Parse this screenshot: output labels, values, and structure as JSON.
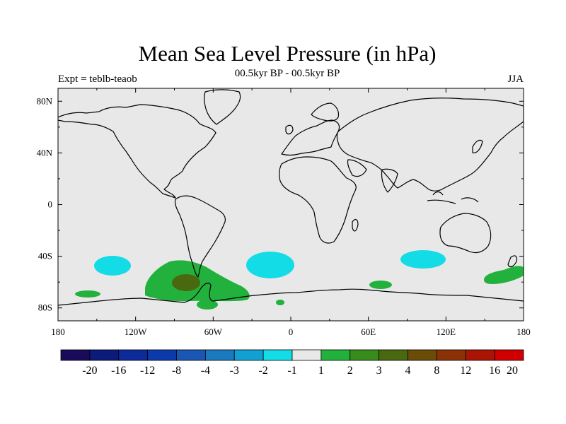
{
  "title": "Mean Sea Level Pressure (in hPa)",
  "subtitle_left": "Expt = teblb-teaob",
  "subtitle_center": "00.5kyr BP - 00.5kyr BP",
  "subtitle_right": "JJA",
  "chart_data": {
    "type": "map",
    "projection": "equirectangular",
    "lon_range": [
      -180,
      180
    ],
    "lat_range": [
      -90,
      90
    ],
    "lon_ticks": [
      "180",
      "120W",
      "60W",
      "0",
      "60E",
      "120E",
      "180"
    ],
    "lat_ticks": [
      "80N",
      "40N",
      "0",
      "40S",
      "80S"
    ],
    "background_color": "#e8e8e8",
    "colorbar": {
      "labels": [
        "-20",
        "-16",
        "-12",
        "-8",
        "-4",
        "-3",
        "-2",
        "-1",
        "1",
        "2",
        "3",
        "4",
        "8",
        "12",
        "16",
        "20"
      ],
      "colors": [
        "#1a0a5a",
        "#0c1a7a",
        "#0c2a9a",
        "#0c3aaa",
        "#1a56b4",
        "#1a7abe",
        "#12a0d2",
        "#14dce6",
        "#e8e8e8",
        "#22b13c",
        "#388c1c",
        "#4a6810",
        "#6a4c06",
        "#8a3206",
        "#aa1404",
        "#d00000"
      ]
    },
    "anomaly_regions": [
      {
        "name": "south-pacific-low-west",
        "lon": -133,
        "lat": -47,
        "category": "-2 to -1"
      },
      {
        "name": "south-atlantic-low",
        "lon": -13,
        "lat": -48,
        "category": "-2 to -1"
      },
      {
        "name": "south-indian-low",
        "lon": 100,
        "lat": -44,
        "category": "-2 to -1"
      },
      {
        "name": "south-pacific-high",
        "lon": -72,
        "lat": -63,
        "category": "1 to 2"
      },
      {
        "name": "south-pacific-high-core",
        "lon": -80,
        "lat": -62,
        "category": "3 to 4"
      },
      {
        "name": "ross-sea-high",
        "lon": -165,
        "lat": -70,
        "category": "1 to 2"
      },
      {
        "name": "antarctic-peninsula-high",
        "lon": -65,
        "lat": -80,
        "category": "1 to 2"
      },
      {
        "name": "weddell-small-high",
        "lon": -8,
        "lat": -78,
        "category": "1 to 2"
      },
      {
        "name": "indian-ocean-high",
        "lon": 68,
        "lat": -64,
        "category": "1 to 2"
      },
      {
        "name": "australia-sw-pacific-high",
        "lon": 162,
        "lat": -55,
        "category": "1 to 2"
      }
    ]
  }
}
